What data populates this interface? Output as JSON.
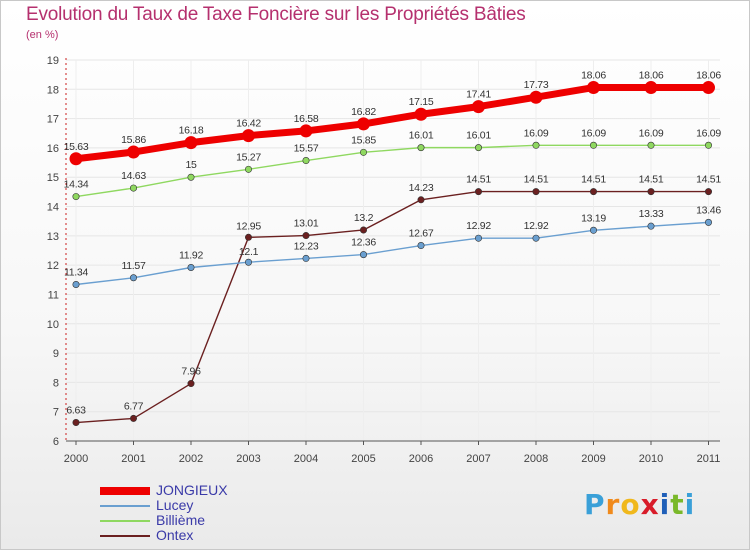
{
  "title": "Evolution du Taux de Taxe Foncière sur les Propriétés Bâties",
  "subtitle": "(en %)",
  "brand": {
    "letters": [
      "P",
      "r",
      "o",
      "x",
      "i",
      "t",
      "i"
    ],
    "colors": [
      "#3aa0d8",
      "#f08a1c",
      "#f0b81c",
      "#d81c2a",
      "#1f5fb8",
      "#7ab82a",
      "#3aa0d8"
    ]
  },
  "chart_data": {
    "type": "line",
    "title": "Evolution du Taux de Taxe Foncière sur les Propriétés Bâties",
    "ylabel": "(en %)",
    "xlabel": "",
    "ylim": [
      6,
      19
    ],
    "yticks": [
      6,
      7,
      8,
      9,
      10,
      11,
      12,
      13,
      14,
      15,
      16,
      17,
      18,
      19
    ],
    "x": [
      "2000",
      "2001",
      "2002",
      "2003",
      "2004",
      "2005",
      "2006",
      "2007",
      "2008",
      "2009",
      "2010",
      "2011"
    ],
    "series": [
      {
        "name": "JONGIEUX",
        "color": "#ee0000",
        "values": [
          15.63,
          15.86,
          16.18,
          16.42,
          16.58,
          16.82,
          17.15,
          17.41,
          17.73,
          18.06,
          18.06,
          18.06
        ],
        "labels": [
          "15.63",
          "15.86",
          "16.18",
          "16.42",
          "16.58",
          "16.82",
          "17.15",
          "17.41",
          "17.73",
          "18.06",
          "18.06",
          "18.06"
        ]
      },
      {
        "name": "Lucey",
        "color": "#6a9fd0",
        "values": [
          11.34,
          11.57,
          11.92,
          12.1,
          12.23,
          12.36,
          12.67,
          12.92,
          12.92,
          13.19,
          13.33,
          13.46
        ],
        "labels": [
          "11.34",
          "11.57",
          "11.92",
          "12.1",
          "12.23",
          "12.36",
          "12.67",
          "12.92",
          "12.92",
          "13.19",
          "13.33",
          "13.46"
        ]
      },
      {
        "name": "Billième",
        "color": "#8fd860",
        "values": [
          14.34,
          14.63,
          15,
          15.27,
          15.57,
          15.85,
          16.01,
          16.01,
          16.09,
          16.09,
          16.09,
          16.09
        ],
        "labels": [
          "14.34",
          "14.63",
          "15",
          "15.27",
          "15.57",
          "15.85",
          "16.01",
          "16.01",
          "16.09",
          "16.09",
          "16.09",
          "16.09"
        ]
      },
      {
        "name": "Ontex",
        "color": "#6b2020",
        "values": [
          6.63,
          6.77,
          7.96,
          12.95,
          13.01,
          13.2,
          14.23,
          14.51,
          14.51,
          14.51,
          14.51,
          14.51
        ],
        "labels": [
          "6.63",
          "6.77",
          "7.96",
          "12.95",
          "13.01",
          "13.2",
          "14.23",
          "14.51",
          "14.51",
          "14.51",
          "14.51",
          "14.51"
        ]
      }
    ],
    "grid": true,
    "legend": "bottom-left"
  }
}
